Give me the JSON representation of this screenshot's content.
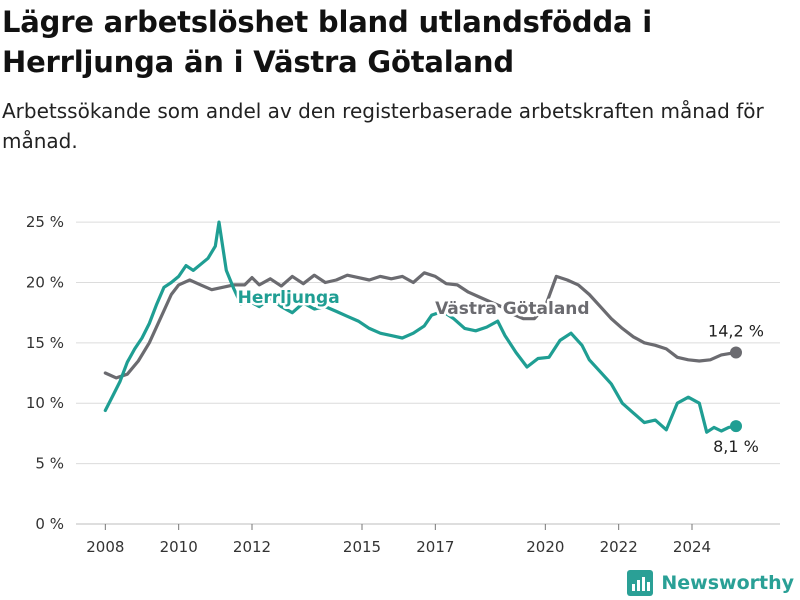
{
  "header": {
    "title": "Lägre arbetslöshet bland utlandsfödda i Herrljunga än i Västra Götaland",
    "subtitle": "Arbetssökande som andel av den registerbaserade arbetskraften månad för månad."
  },
  "brand": {
    "name": "Newsworthy",
    "icon": "newsworthy-chart-icon",
    "color": "#2aa096"
  },
  "chart_data": {
    "type": "line",
    "y_ticks": [
      0,
      5,
      10,
      15,
      20,
      25
    ],
    "y_tick_labels": [
      "0 %",
      "5 %",
      "10 %",
      "15 %",
      "20 %",
      "25 %"
    ],
    "x_ticks": [
      2008,
      2010,
      2012,
      2015,
      2017,
      2020,
      2022,
      2024
    ],
    "x_tick_labels": [
      "2008",
      "2010",
      "2012",
      "2015",
      "2017",
      "2020",
      "2022",
      "2024"
    ],
    "xlim": [
      2007.2,
      2026.4
    ],
    "ylim": [
      0,
      26
    ],
    "grid": true,
    "series": [
      {
        "name": "Västra Götaland",
        "color": "#6b6b70",
        "end_label": "14,2 %",
        "points": [
          [
            2008.0,
            12.5
          ],
          [
            2008.3,
            12.1
          ],
          [
            2008.6,
            12.4
          ],
          [
            2008.9,
            13.5
          ],
          [
            2009.2,
            15.0
          ],
          [
            2009.5,
            17.0
          ],
          [
            2009.8,
            19.0
          ],
          [
            2010.0,
            19.8
          ],
          [
            2010.3,
            20.2
          ],
          [
            2010.6,
            19.8
          ],
          [
            2010.9,
            19.4
          ],
          [
            2011.2,
            19.6
          ],
          [
            2011.5,
            19.8
          ],
          [
            2011.8,
            19.8
          ],
          [
            2012.0,
            20.4
          ],
          [
            2012.2,
            19.8
          ],
          [
            2012.5,
            20.3
          ],
          [
            2012.8,
            19.7
          ],
          [
            2013.1,
            20.5
          ],
          [
            2013.4,
            19.9
          ],
          [
            2013.7,
            20.6
          ],
          [
            2014.0,
            20.0
          ],
          [
            2014.3,
            20.2
          ],
          [
            2014.6,
            20.6
          ],
          [
            2014.9,
            20.4
          ],
          [
            2015.2,
            20.2
          ],
          [
            2015.5,
            20.5
          ],
          [
            2015.8,
            20.3
          ],
          [
            2016.1,
            20.5
          ],
          [
            2016.4,
            20.0
          ],
          [
            2016.7,
            20.8
          ],
          [
            2017.0,
            20.5
          ],
          [
            2017.3,
            19.9
          ],
          [
            2017.6,
            19.8
          ],
          [
            2017.9,
            19.2
          ],
          [
            2018.2,
            18.8
          ],
          [
            2018.5,
            18.4
          ],
          [
            2018.8,
            18.0
          ],
          [
            2019.1,
            17.4
          ],
          [
            2019.4,
            17.0
          ],
          [
            2019.7,
            17.0
          ],
          [
            2020.0,
            18.0
          ],
          [
            2020.3,
            20.5
          ],
          [
            2020.6,
            20.2
          ],
          [
            2020.9,
            19.8
          ],
          [
            2021.2,
            19.0
          ],
          [
            2021.5,
            18.0
          ],
          [
            2021.8,
            17.0
          ],
          [
            2022.1,
            16.2
          ],
          [
            2022.4,
            15.5
          ],
          [
            2022.7,
            15.0
          ],
          [
            2023.0,
            14.8
          ],
          [
            2023.3,
            14.5
          ],
          [
            2023.6,
            13.8
          ],
          [
            2023.9,
            13.6
          ],
          [
            2024.2,
            13.5
          ],
          [
            2024.5,
            13.6
          ],
          [
            2024.8,
            14.0
          ],
          [
            2025.0,
            14.1
          ],
          [
            2025.2,
            14.2
          ]
        ]
      },
      {
        "name": "Herrljunga",
        "color": "#1f9e93",
        "end_label": "8,1 %",
        "points": [
          [
            2008.0,
            9.4
          ],
          [
            2008.2,
            10.6
          ],
          [
            2008.4,
            11.8
          ],
          [
            2008.6,
            13.4
          ],
          [
            2008.8,
            14.5
          ],
          [
            2009.0,
            15.4
          ],
          [
            2009.2,
            16.6
          ],
          [
            2009.4,
            18.2
          ],
          [
            2009.6,
            19.6
          ],
          [
            2009.8,
            20.0
          ],
          [
            2010.0,
            20.5
          ],
          [
            2010.2,
            21.4
          ],
          [
            2010.4,
            21.0
          ],
          [
            2010.6,
            21.5
          ],
          [
            2010.8,
            22.0
          ],
          [
            2011.0,
            23.0
          ],
          [
            2011.1,
            25.0
          ],
          [
            2011.3,
            21.0
          ],
          [
            2011.5,
            19.5
          ],
          [
            2011.7,
            18.2
          ],
          [
            2011.9,
            18.5
          ],
          [
            2012.2,
            18.0
          ],
          [
            2012.5,
            18.7
          ],
          [
            2012.8,
            18.0
          ],
          [
            2013.1,
            17.5
          ],
          [
            2013.4,
            18.3
          ],
          [
            2013.7,
            17.8
          ],
          [
            2014.0,
            18.0
          ],
          [
            2014.3,
            17.6
          ],
          [
            2014.6,
            17.2
          ],
          [
            2014.9,
            16.8
          ],
          [
            2015.2,
            16.2
          ],
          [
            2015.5,
            15.8
          ],
          [
            2015.8,
            15.6
          ],
          [
            2016.1,
            15.4
          ],
          [
            2016.4,
            15.8
          ],
          [
            2016.7,
            16.4
          ],
          [
            2016.9,
            17.3
          ],
          [
            2017.2,
            17.6
          ],
          [
            2017.5,
            17.0
          ],
          [
            2017.8,
            16.2
          ],
          [
            2018.1,
            16.0
          ],
          [
            2018.4,
            16.3
          ],
          [
            2018.7,
            16.8
          ],
          [
            2018.9,
            15.6
          ],
          [
            2019.2,
            14.2
          ],
          [
            2019.5,
            13.0
          ],
          [
            2019.8,
            13.7
          ],
          [
            2020.1,
            13.8
          ],
          [
            2020.4,
            15.2
          ],
          [
            2020.7,
            15.8
          ],
          [
            2021.0,
            14.8
          ],
          [
            2021.2,
            13.6
          ],
          [
            2021.5,
            12.6
          ],
          [
            2021.8,
            11.6
          ],
          [
            2022.1,
            10.0
          ],
          [
            2022.4,
            9.2
          ],
          [
            2022.7,
            8.4
          ],
          [
            2023.0,
            8.6
          ],
          [
            2023.3,
            7.8
          ],
          [
            2023.6,
            10.0
          ],
          [
            2023.9,
            10.5
          ],
          [
            2024.2,
            10.0
          ],
          [
            2024.4,
            7.6
          ],
          [
            2024.6,
            8.0
          ],
          [
            2024.8,
            7.7
          ],
          [
            2025.0,
            8.0
          ],
          [
            2025.2,
            8.1
          ]
        ]
      }
    ]
  }
}
